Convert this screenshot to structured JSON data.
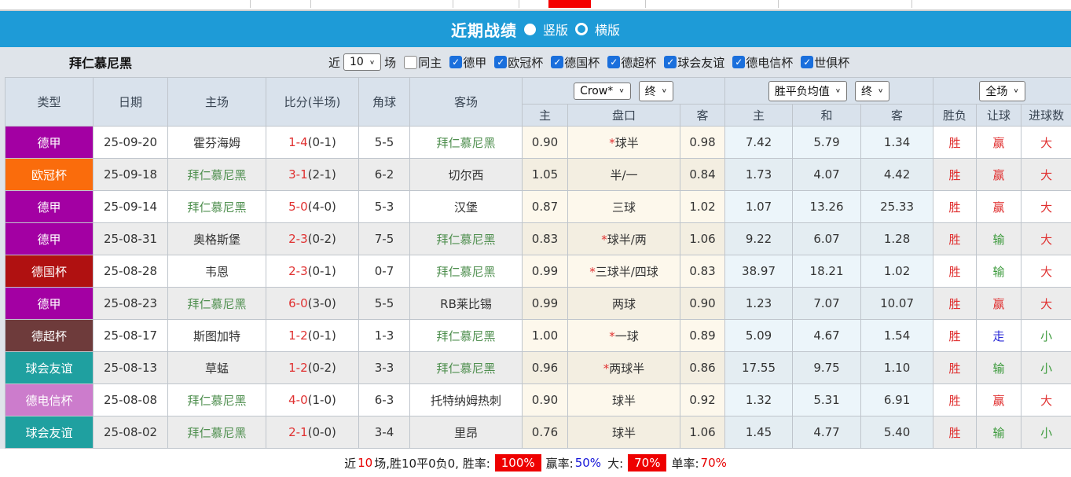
{
  "title_bar": {
    "title": "近期战绩",
    "view_options": [
      {
        "label": "竖版",
        "selected": true
      },
      {
        "label": "横版",
        "selected": false
      }
    ]
  },
  "filter_bar": {
    "team_name": "拜仁慕尼黑",
    "recent_label": "近",
    "matches_count": "10",
    "matches_label": "场",
    "same_home": {
      "label": "同主",
      "checked": false
    },
    "leagues": [
      {
        "label": "德甲",
        "checked": true
      },
      {
        "label": "欧冠杯",
        "checked": true
      },
      {
        "label": "德国杯",
        "checked": true
      },
      {
        "label": "德超杯",
        "checked": true
      },
      {
        "label": "球会友谊",
        "checked": true
      },
      {
        "label": "德电信杯",
        "checked": true
      },
      {
        "label": "世俱杯",
        "checked": true
      }
    ]
  },
  "table": {
    "main_headers": [
      "类型",
      "日期",
      "主场",
      "比分(半场)",
      "角球",
      "客场"
    ],
    "sub_headers": [
      "主",
      "盘口",
      "客",
      "主",
      "和",
      "客",
      "胜负",
      "让球",
      "进球数"
    ],
    "selects": {
      "company": "Crow*",
      "company_time": "终",
      "average": "胜平负均值",
      "average_time": "终",
      "scope": "全场"
    },
    "rows": [
      {
        "type": "德甲",
        "type_color": "#a300a3",
        "date": "25-09-20",
        "home": "霍芬海姆",
        "home_color": "#333333",
        "score_ft": "1-4",
        "score_ht": "(0-1)",
        "corners": "5-5",
        "away": "拜仁慕尼黑",
        "away_color": "#4f8f4f",
        "odds_home": "0.90",
        "handicap_star": "*",
        "handicap": "球半",
        "odds_away": "0.98",
        "avg_home": "7.42",
        "avg_draw": "5.79",
        "avg_away": "1.34",
        "result": "胜",
        "result_color": "#e03131",
        "handicap_result": "赢",
        "handicap_result_color": "#e03131",
        "goals_result": "大",
        "goals_result_color": "#e03131"
      },
      {
        "type": "欧冠杯",
        "type_color": "#fa6c0c",
        "date": "25-09-18",
        "home": "拜仁慕尼黑",
        "home_color": "#4f8f4f",
        "score_ft": "3-1",
        "score_ht": "(2-1)",
        "corners": "6-2",
        "away": "切尔西",
        "away_color": "#333333",
        "odds_home": "1.05",
        "handicap_star": "",
        "handicap": "半/一",
        "odds_away": "0.84",
        "avg_home": "1.73",
        "avg_draw": "4.07",
        "avg_away": "4.42",
        "result": "胜",
        "result_color": "#e03131",
        "handicap_result": "赢",
        "handicap_result_color": "#e03131",
        "goals_result": "大",
        "goals_result_color": "#e03131"
      },
      {
        "type": "德甲",
        "type_color": "#a300a3",
        "date": "25-09-14",
        "home": "拜仁慕尼黑",
        "home_color": "#4f8f4f",
        "score_ft": "5-0",
        "score_ht": "(4-0)",
        "corners": "5-3",
        "away": "汉堡",
        "away_color": "#333333",
        "odds_home": "0.87",
        "handicap_star": "",
        "handicap": "三球",
        "odds_away": "1.02",
        "avg_home": "1.07",
        "avg_draw": "13.26",
        "avg_away": "25.33",
        "result": "胜",
        "result_color": "#e03131",
        "handicap_result": "赢",
        "handicap_result_color": "#e03131",
        "goals_result": "大",
        "goals_result_color": "#e03131"
      },
      {
        "type": "德甲",
        "type_color": "#a300a3",
        "date": "25-08-31",
        "home": "奥格斯堡",
        "home_color": "#333333",
        "score_ft": "2-3",
        "score_ht": "(0-2)",
        "corners": "7-5",
        "away": "拜仁慕尼黑",
        "away_color": "#4f8f4f",
        "odds_home": "0.83",
        "handicap_star": "*",
        "handicap": "球半/两",
        "odds_away": "1.06",
        "avg_home": "9.22",
        "avg_draw": "6.07",
        "avg_away": "1.28",
        "result": "胜",
        "result_color": "#e03131",
        "handicap_result": "输",
        "handicap_result_color": "#3c9a3c",
        "goals_result": "大",
        "goals_result_color": "#e03131"
      },
      {
        "type": "德国杯",
        "type_color": "#b01111",
        "date": "25-08-28",
        "home": "韦恩",
        "home_color": "#333333",
        "score_ft": "2-3",
        "score_ht": "(0-1)",
        "corners": "0-7",
        "away": "拜仁慕尼黑",
        "away_color": "#4f8f4f",
        "odds_home": "0.99",
        "handicap_star": "*",
        "handicap": "三球半/四球",
        "odds_away": "0.83",
        "avg_home": "38.97",
        "avg_draw": "18.21",
        "avg_away": "1.02",
        "result": "胜",
        "result_color": "#e03131",
        "handicap_result": "输",
        "handicap_result_color": "#3c9a3c",
        "goals_result": "大",
        "goals_result_color": "#e03131"
      },
      {
        "type": "德甲",
        "type_color": "#a300a3",
        "date": "25-08-23",
        "home": "拜仁慕尼黑",
        "home_color": "#4f8f4f",
        "score_ft": "6-0",
        "score_ht": "(3-0)",
        "corners": "5-5",
        "away": "RB莱比锡",
        "away_color": "#333333",
        "odds_home": "0.99",
        "handicap_star": "",
        "handicap": "两球",
        "odds_away": "0.90",
        "avg_home": "1.23",
        "avg_draw": "7.07",
        "avg_away": "10.07",
        "result": "胜",
        "result_color": "#e03131",
        "handicap_result": "赢",
        "handicap_result_color": "#e03131",
        "goals_result": "大",
        "goals_result_color": "#e03131"
      },
      {
        "type": "德超杯",
        "type_color": "#6e3b3b",
        "date": "25-08-17",
        "home": "斯图加特",
        "home_color": "#333333",
        "score_ft": "1-2",
        "score_ht": "(0-1)",
        "corners": "1-3",
        "away": "拜仁慕尼黑",
        "away_color": "#4f8f4f",
        "odds_home": "1.00",
        "handicap_star": "*",
        "handicap": "一球",
        "odds_away": "0.89",
        "avg_home": "5.09",
        "avg_draw": "4.67",
        "avg_away": "1.54",
        "result": "胜",
        "result_color": "#e03131",
        "handicap_result": "走",
        "handicap_result_color": "#2a2ad6",
        "goals_result": "小",
        "goals_result_color": "#3c9a3c"
      },
      {
        "type": "球会友谊",
        "type_color": "#1fa0a0",
        "date": "25-08-13",
        "home": "草蜢",
        "home_color": "#333333",
        "score_ft": "1-2",
        "score_ht": "(0-2)",
        "corners": "3-3",
        "away": "拜仁慕尼黑",
        "away_color": "#4f8f4f",
        "odds_home": "0.96",
        "handicap_star": "*",
        "handicap": "两球半",
        "odds_away": "0.86",
        "avg_home": "17.55",
        "avg_draw": "9.75",
        "avg_away": "1.10",
        "result": "胜",
        "result_color": "#e03131",
        "handicap_result": "输",
        "handicap_result_color": "#3c9a3c",
        "goals_result": "小",
        "goals_result_color": "#3c9a3c"
      },
      {
        "type": "德电信杯",
        "type_color": "#cc7ccc",
        "date": "25-08-08",
        "home": "拜仁慕尼黑",
        "home_color": "#4f8f4f",
        "score_ft": "4-0",
        "score_ht": "(1-0)",
        "corners": "6-3",
        "away": "托特纳姆热刺",
        "away_color": "#333333",
        "odds_home": "0.90",
        "handicap_star": "",
        "handicap": "球半",
        "odds_away": "0.92",
        "avg_home": "1.32",
        "avg_draw": "5.31",
        "avg_away": "6.91",
        "result": "胜",
        "result_color": "#e03131",
        "handicap_result": "赢",
        "handicap_result_color": "#e03131",
        "goals_result": "大",
        "goals_result_color": "#e03131"
      },
      {
        "type": "球会友谊",
        "type_color": "#1fa0a0",
        "date": "25-08-02",
        "home": "拜仁慕尼黑",
        "home_color": "#4f8f4f",
        "score_ft": "2-1",
        "score_ht": "(0-0)",
        "corners": "3-4",
        "away": "里昂",
        "away_color": "#333333",
        "odds_home": "0.76",
        "handicap_star": "",
        "handicap": "球半",
        "odds_away": "1.06",
        "avg_home": "1.45",
        "avg_draw": "4.77",
        "avg_away": "5.40",
        "result": "胜",
        "result_color": "#e03131",
        "handicap_result": "输",
        "handicap_result_color": "#3c9a3c",
        "goals_result": "小",
        "goals_result_color": "#3c9a3c"
      }
    ]
  },
  "summary": {
    "prefix": "近",
    "count": "10",
    "stats_text": "场,胜10平0负0, 胜率:",
    "win_rate": "100%",
    "handicap_label": "赢率:",
    "handicap_rate": "50%",
    "big_label": "大:",
    "big_rate": "70%",
    "single_label": "单率:",
    "single_rate": "70%"
  },
  "colors": {
    "title_bar_blue": "#1e9bd7",
    "filter_bar_bg": "#dfe4ea",
    "header_bg": "#d9e2ec",
    "odds_col_bg": "#fdf8ec",
    "avg_col_bg": "#ecf5fa",
    "win_red": "#e03131",
    "lose_green": "#3c9a3c",
    "push_blue": "#2a2ad6",
    "team_green": "#4f8f4f",
    "badge_red": "#ee0000"
  }
}
